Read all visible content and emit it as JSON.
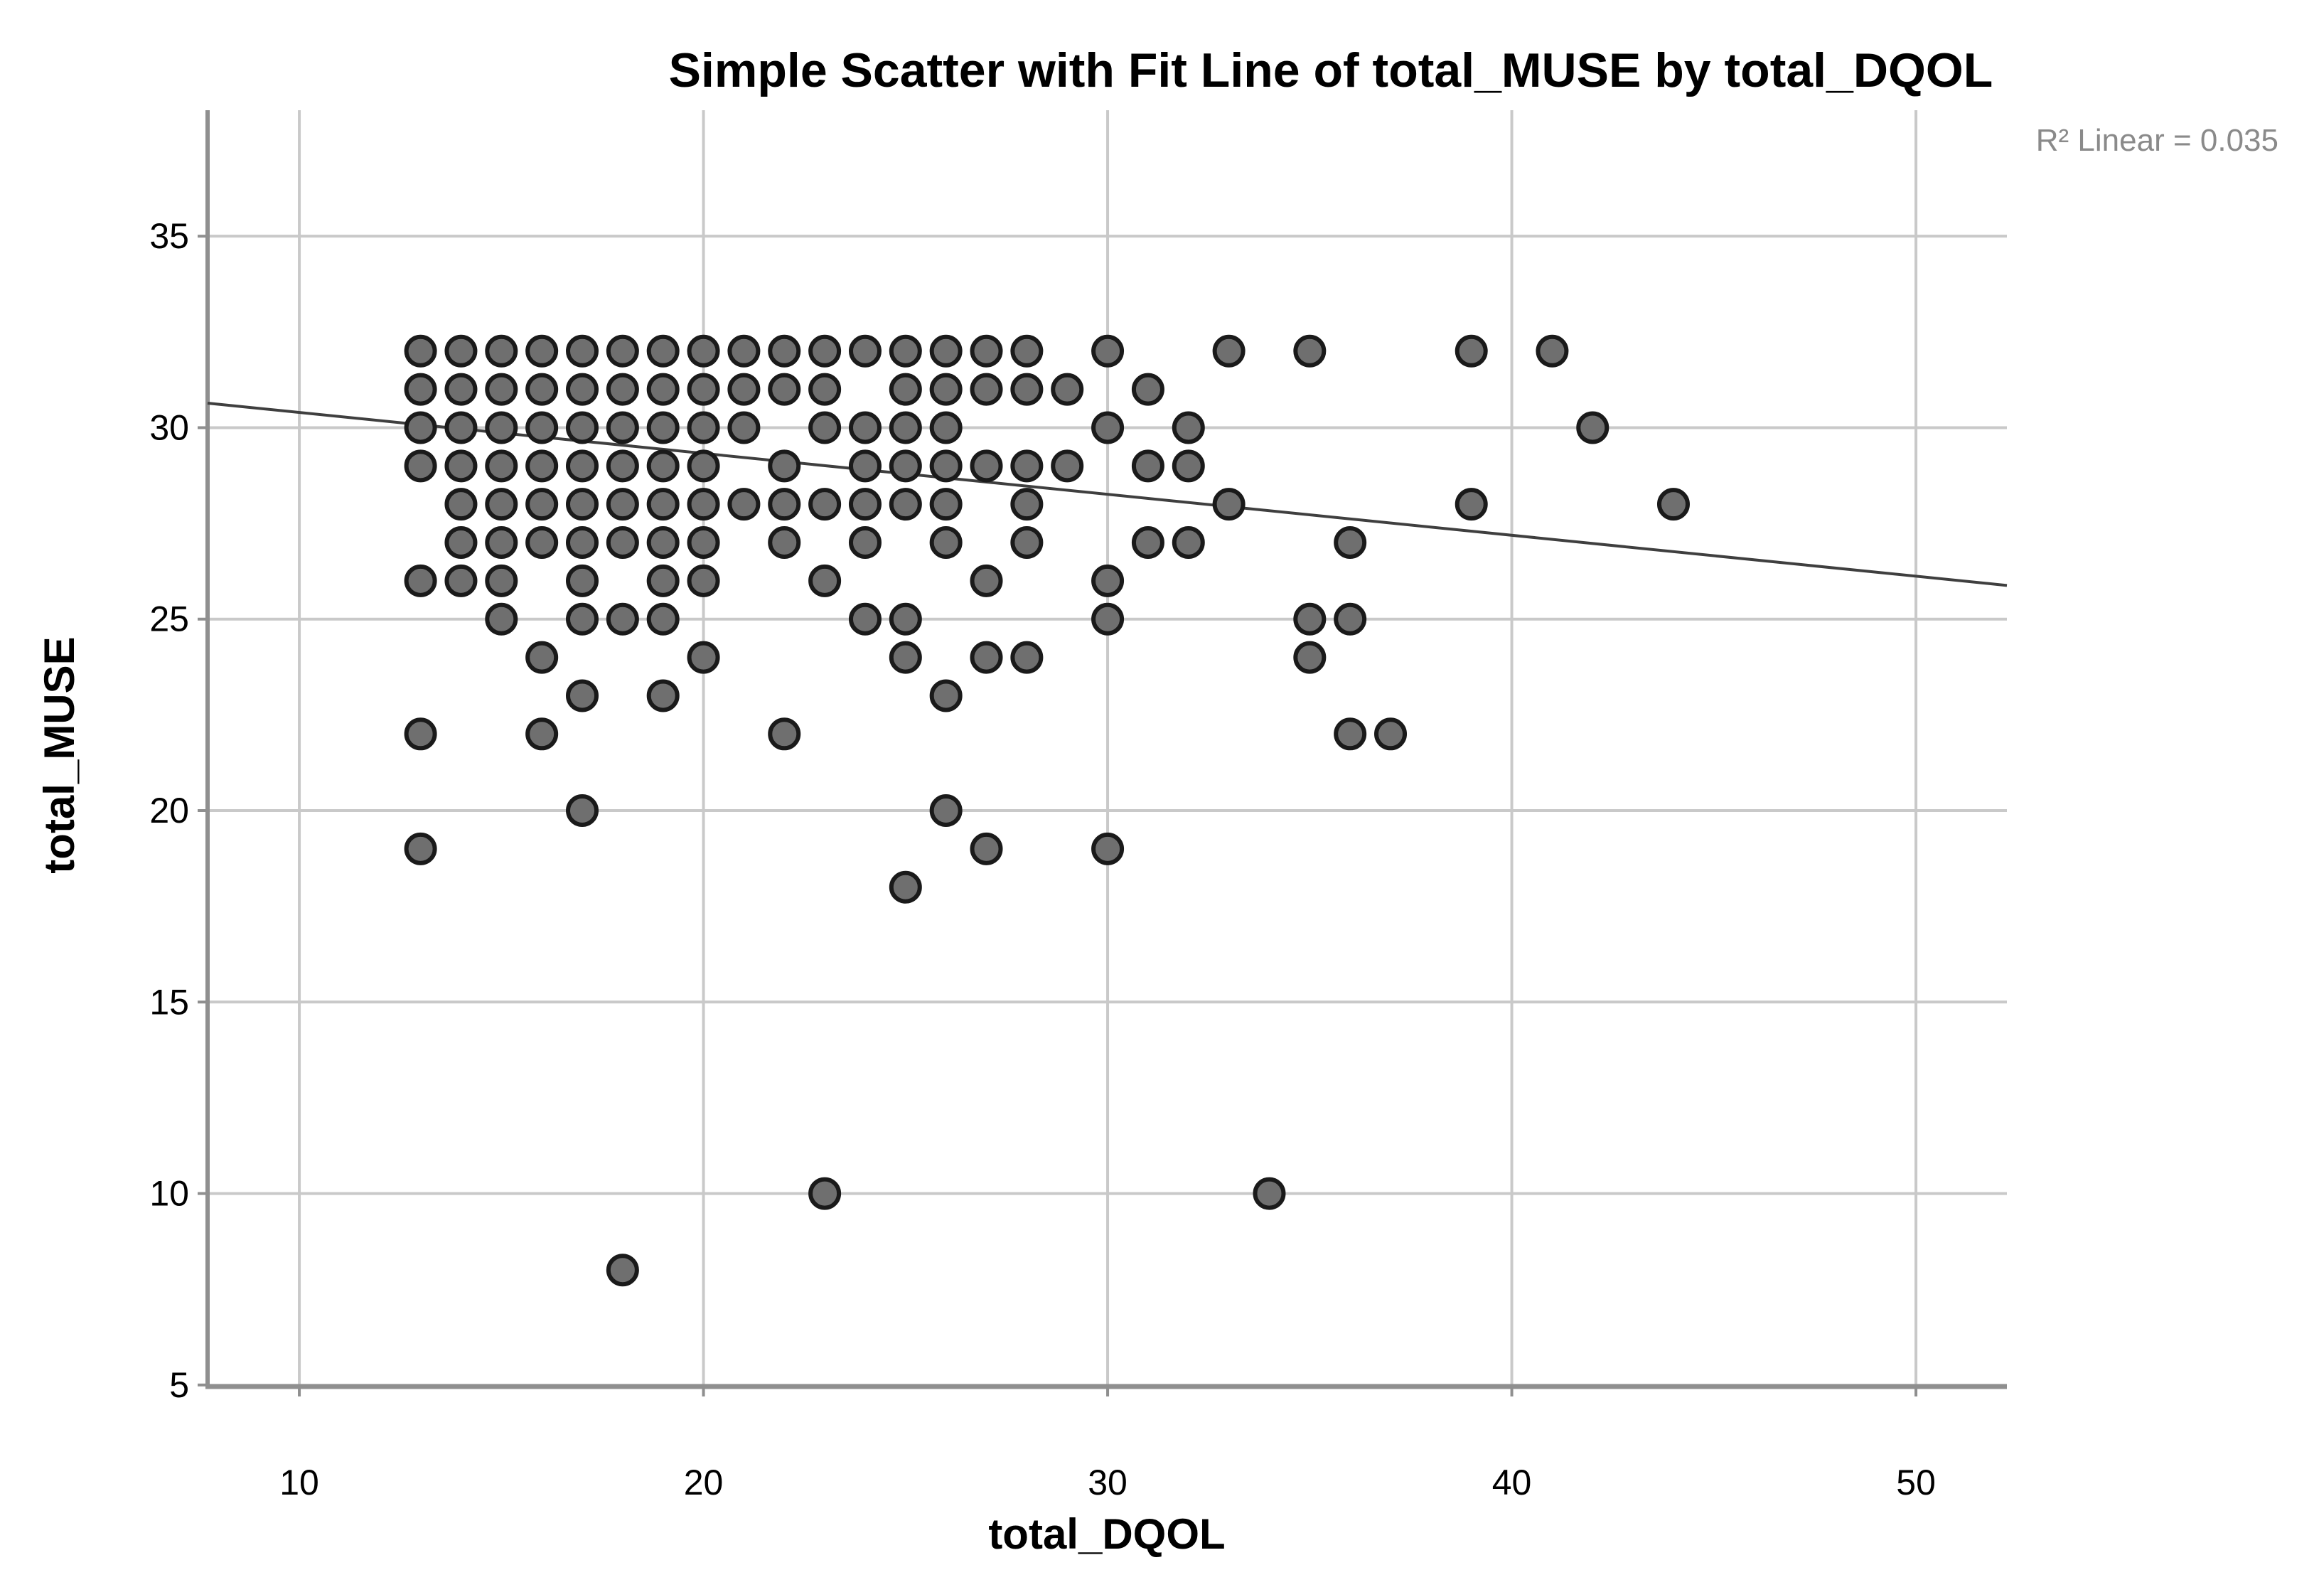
{
  "chart_data": {
    "type": "scatter",
    "title": "Simple Scatter with Fit Line of total_MUSE by total_DQOL",
    "r2_annotation": "R² Linear = 0.035",
    "xlabel": "total_DQOL",
    "ylabel": "total_MUSE",
    "x_ticks": [
      10,
      20,
      30,
      40,
      50
    ],
    "y_ticks": [
      5,
      10,
      15,
      20,
      25,
      30,
      35
    ],
    "x_domain": [
      7.73,
      52.25
    ],
    "y_domain": [
      4.96,
      38.29
    ],
    "grid": true,
    "fit_line": {
      "x1": 7.73,
      "y1": 30.64,
      "x2": 52.25,
      "y2": 25.88
    },
    "points": [
      [
        13,
        32
      ],
      [
        14,
        32
      ],
      [
        15,
        32
      ],
      [
        16,
        32
      ],
      [
        17,
        32
      ],
      [
        18,
        32
      ],
      [
        19,
        32
      ],
      [
        20,
        32
      ],
      [
        21,
        32
      ],
      [
        22,
        32
      ],
      [
        23,
        32
      ],
      [
        24,
        32
      ],
      [
        25,
        32
      ],
      [
        26,
        32
      ],
      [
        27,
        32
      ],
      [
        28,
        32
      ],
      [
        30,
        32
      ],
      [
        33,
        32
      ],
      [
        35,
        32
      ],
      [
        39,
        32
      ],
      [
        41,
        32
      ],
      [
        13,
        31
      ],
      [
        14,
        31
      ],
      [
        15,
        31
      ],
      [
        16,
        31
      ],
      [
        17,
        31
      ],
      [
        18,
        31
      ],
      [
        19,
        31
      ],
      [
        20,
        31
      ],
      [
        21,
        31
      ],
      [
        22,
        31
      ],
      [
        23,
        31
      ],
      [
        25,
        31
      ],
      [
        26,
        31
      ],
      [
        27,
        31
      ],
      [
        28,
        31
      ],
      [
        29,
        31
      ],
      [
        31,
        31
      ],
      [
        13,
        30
      ],
      [
        14,
        30
      ],
      [
        15,
        30
      ],
      [
        16,
        30
      ],
      [
        17,
        30
      ],
      [
        18,
        30
      ],
      [
        19,
        30
      ],
      [
        20,
        30
      ],
      [
        21,
        30
      ],
      [
        23,
        30
      ],
      [
        24,
        30
      ],
      [
        25,
        30
      ],
      [
        26,
        30
      ],
      [
        30,
        30
      ],
      [
        32,
        30
      ],
      [
        42,
        30
      ],
      [
        13,
        29
      ],
      [
        14,
        29
      ],
      [
        15,
        29
      ],
      [
        16,
        29
      ],
      [
        17,
        29
      ],
      [
        18,
        29
      ],
      [
        19,
        29
      ],
      [
        20,
        29
      ],
      [
        22,
        29
      ],
      [
        24,
        29
      ],
      [
        25,
        29
      ],
      [
        26,
        29
      ],
      [
        27,
        29
      ],
      [
        28,
        29
      ],
      [
        29,
        29
      ],
      [
        31,
        29
      ],
      [
        32,
        29
      ],
      [
        14,
        28
      ],
      [
        15,
        28
      ],
      [
        16,
        28
      ],
      [
        17,
        28
      ],
      [
        18,
        28
      ],
      [
        19,
        28
      ],
      [
        20,
        28
      ],
      [
        21,
        28
      ],
      [
        22,
        28
      ],
      [
        23,
        28
      ],
      [
        24,
        28
      ],
      [
        25,
        28
      ],
      [
        26,
        28
      ],
      [
        28,
        28
      ],
      [
        33,
        28
      ],
      [
        39,
        28
      ],
      [
        44,
        28
      ],
      [
        14,
        27
      ],
      [
        15,
        27
      ],
      [
        16,
        27
      ],
      [
        17,
        27
      ],
      [
        18,
        27
      ],
      [
        19,
        27
      ],
      [
        20,
        27
      ],
      [
        22,
        27
      ],
      [
        24,
        27
      ],
      [
        26,
        27
      ],
      [
        28,
        27
      ],
      [
        31,
        27
      ],
      [
        32,
        27
      ],
      [
        36,
        27
      ],
      [
        13,
        26
      ],
      [
        14,
        26
      ],
      [
        15,
        26
      ],
      [
        17,
        26
      ],
      [
        19,
        26
      ],
      [
        20,
        26
      ],
      [
        23,
        26
      ],
      [
        27,
        26
      ],
      [
        30,
        26
      ],
      [
        15,
        25
      ],
      [
        17,
        25
      ],
      [
        18,
        25
      ],
      [
        19,
        25
      ],
      [
        24,
        25
      ],
      [
        25,
        25
      ],
      [
        30,
        25
      ],
      [
        35,
        25
      ],
      [
        36,
        25
      ],
      [
        16,
        24
      ],
      [
        20,
        24
      ],
      [
        25,
        24
      ],
      [
        27,
        24
      ],
      [
        28,
        24
      ],
      [
        35,
        24
      ],
      [
        17,
        23
      ],
      [
        19,
        23
      ],
      [
        26,
        23
      ],
      [
        13,
        22
      ],
      [
        16,
        22
      ],
      [
        22,
        22
      ],
      [
        36,
        22
      ],
      [
        37,
        22
      ],
      [
        17,
        20
      ],
      [
        26,
        20
      ],
      [
        13,
        19
      ],
      [
        27,
        19
      ],
      [
        30,
        19
      ],
      [
        25,
        18
      ],
      [
        23,
        10
      ],
      [
        34,
        10
      ],
      [
        18,
        8
      ]
    ],
    "colors": {
      "point_fill": "#6f6f6f",
      "point_stroke": "#1a1a1a",
      "gridline": "#c9c9c9",
      "frame": "#8f8f8f",
      "fit_line": "#3f3f3f",
      "text": "#000000",
      "annotation_text": "#8a8a8a"
    }
  }
}
